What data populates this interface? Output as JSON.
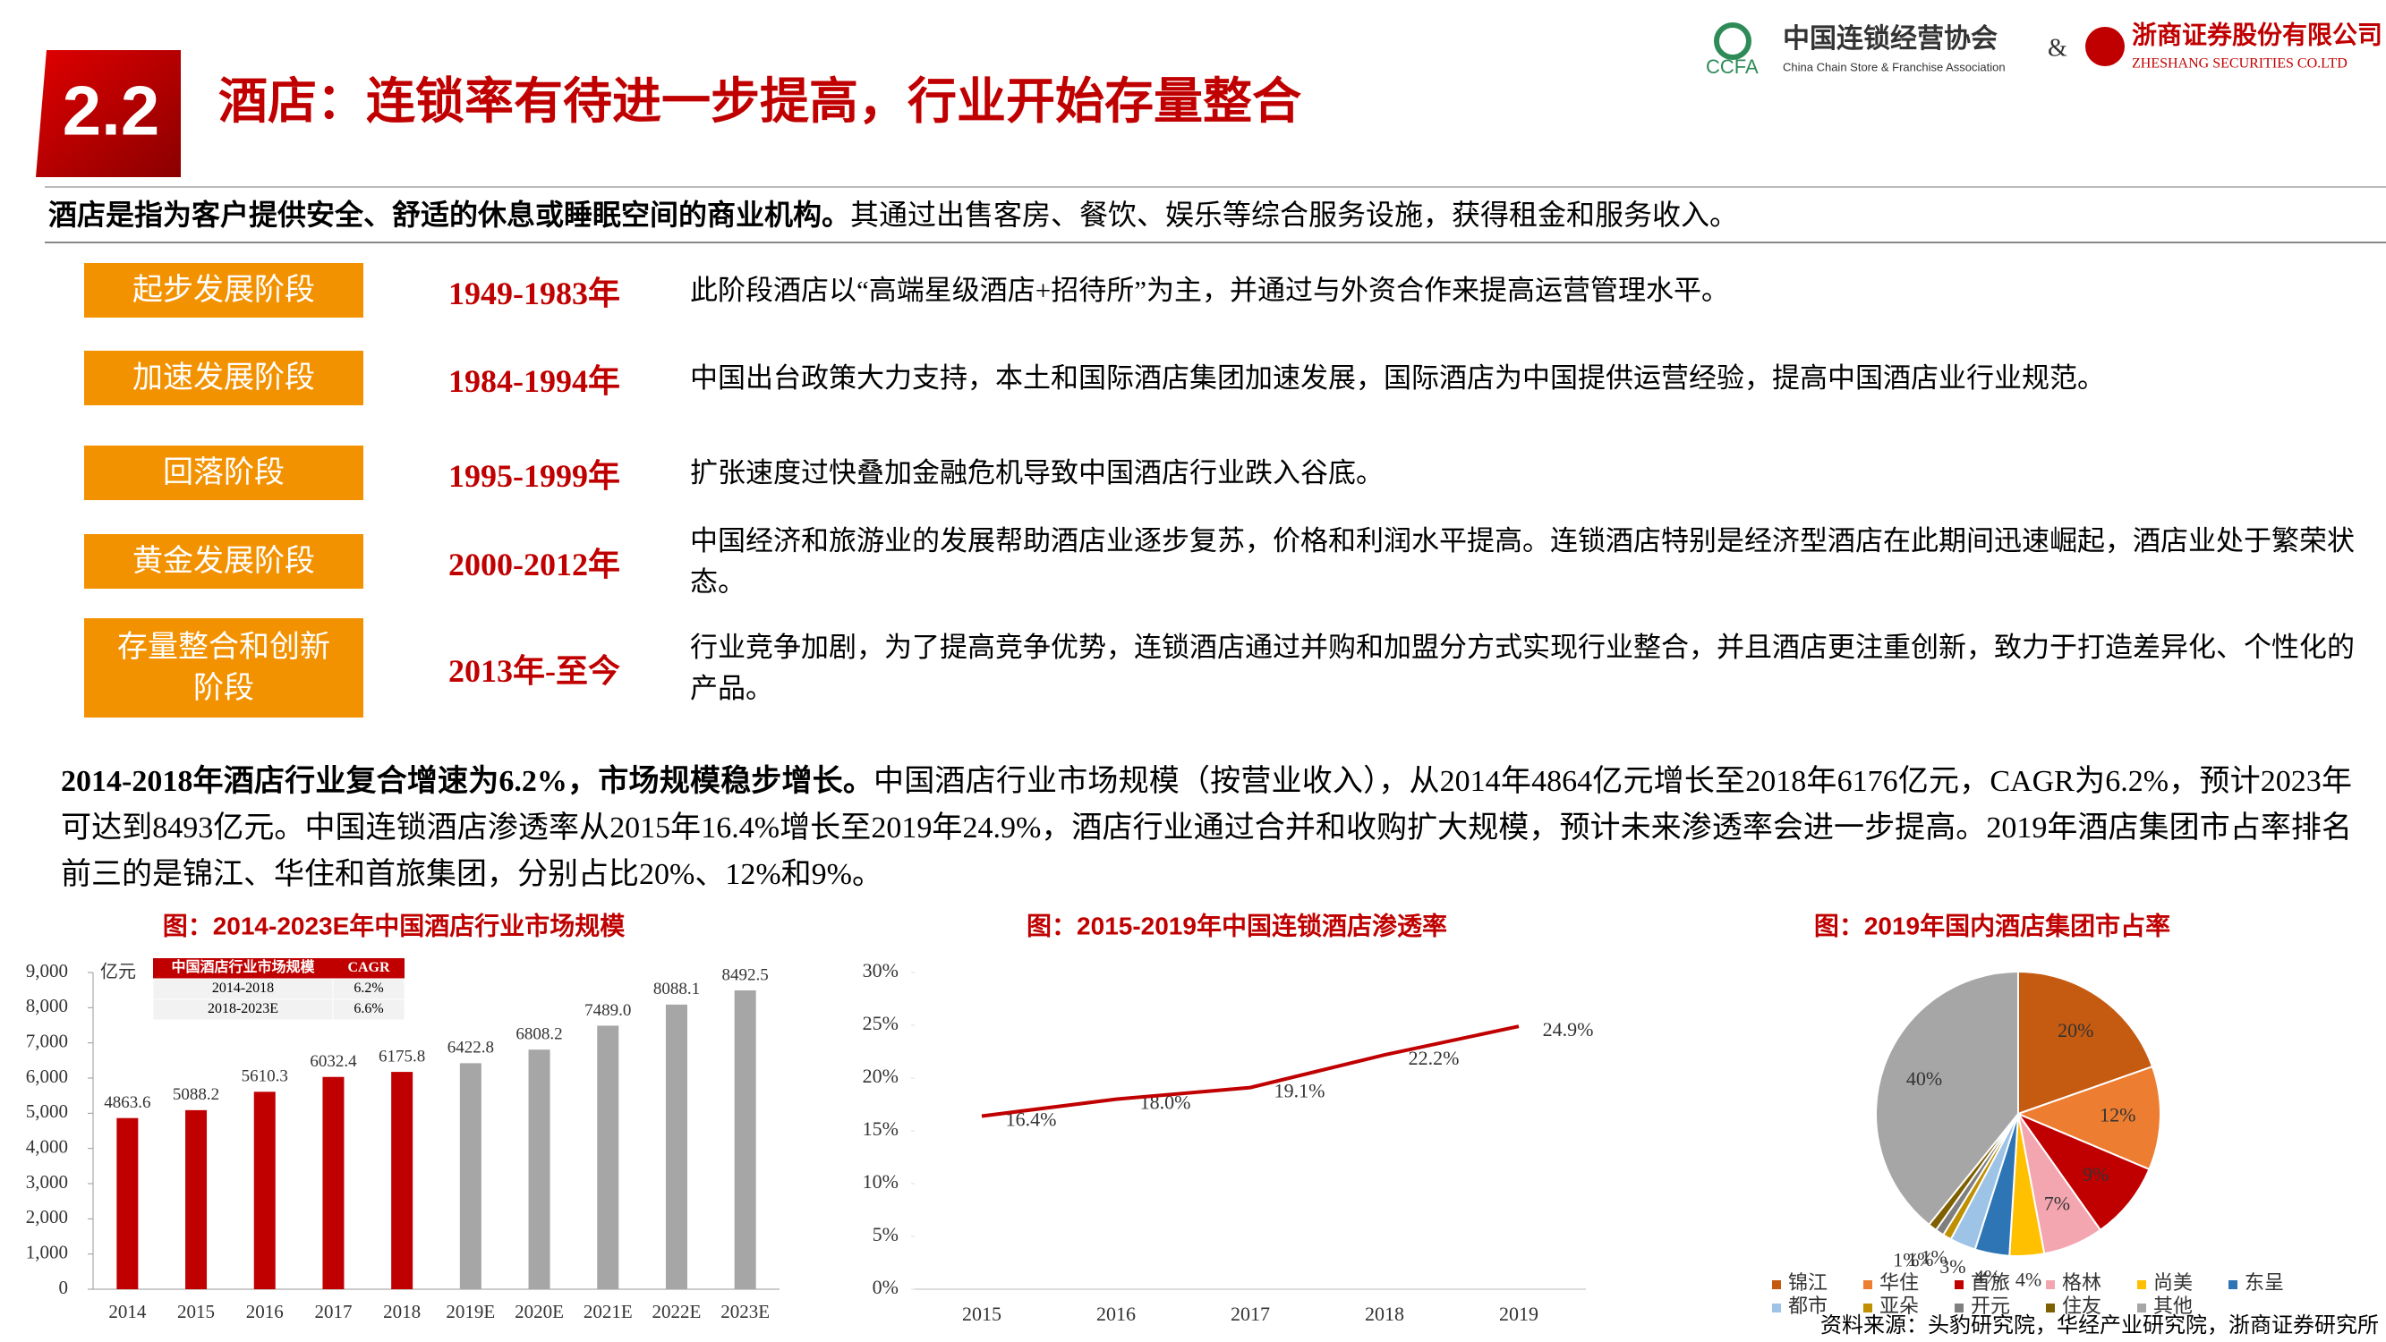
{
  "header": {
    "badge": "2.2",
    "title": "酒店：连锁率有待进一步提高，行业开始存量整合",
    "logo_ccfa": {
      "name": "中国连锁经营协会",
      "abbr": "CCFA",
      "english": "China Chain Store & Franchise Association"
    },
    "ampersand": "&",
    "logo_zheshang": {
      "name": "浙商证券股份有限公司",
      "english": "ZHESHANG SECURITIES CO.LTD"
    }
  },
  "intro": {
    "bold": "酒店是指为客户提供安全、舒适的休息或睡眠空间的商业机构。",
    "text": "其通过出售客房、餐饮、娱乐等综合服务设施，获得租金和服务收入。"
  },
  "stages": [
    {
      "label": "起步发展阶段",
      "period": "1949-1983年",
      "description": "此阶段酒店以“高端星级酒店+招待所”为主，并通过与外资合作来提高运营管理水平。"
    },
    {
      "label": "加速发展阶段",
      "period": "1984-1994年",
      "description": "中国出台政策大力支持，本土和国际酒店集团加速发展，国际酒店为中国提供运营经验，提高中国酒店业行业规范。"
    },
    {
      "label": "回落阶段",
      "period": "1995-1999年",
      "description": "扩张速度过快叠加金融危机导致中国酒店行业跌入谷底。"
    },
    {
      "label": "黄金发展阶段",
      "period": "2000-2012年",
      "description": "中国经济和旅游业的发展帮助酒店业逐步复苏，价格和利润水平提高。连锁酒店特别是经济型酒店在此期间迅速崛起，酒店业处于繁荣状态。"
    },
    {
      "label": "存量整合和创新阶段",
      "period": "2013年-至今",
      "description": "行业竞争加剧，为了提高竞争优势，连锁酒店通过并购和加盟分方式实现行业整合，并且酒店更注重创新，致力于打造差异化、个性化的产品。"
    }
  ],
  "summary": {
    "bold": "2014-2018年酒店行业复合增速为6.2%，市场规模稳步增长。",
    "text": "中国酒店行业市场规模（按营业收入），从2014年4864亿元增长至2018年6176亿元，CAGR为6.2%，预计2023年可达到8493亿元。中国连锁酒店渗透率从2015年16.4%增长至2019年24.9%，酒店行业通过合并和收购扩大规模，预计未来渗透率会进一步提高。2019年酒店集团市占率排名前三的是锦江、华住和首旅集团，分别占比20%、12%和9%。"
  },
  "chart_data": [
    {
      "type": "bar",
      "title": "图：2014-2023E年中国酒店行业市场规模",
      "unit": "亿元",
      "categories": [
        "2014",
        "2015",
        "2016",
        "2017",
        "2018",
        "2019E",
        "2020E",
        "2021E",
        "2022E",
        "2023E"
      ],
      "values": [
        4863.6,
        5088.2,
        5610.3,
        6032.4,
        6175.8,
        6422.8,
        6808.2,
        7489.0,
        8088.1,
        8492.5
      ],
      "value_labels": [
        "4863.6",
        "5088.2",
        "5610.3",
        "6032.4",
        "6175.8",
        "6422.8",
        "6808.2",
        "7489.0",
        "8088.1",
        "8492.5"
      ],
      "colors": [
        "#c00000",
        "#c00000",
        "#c00000",
        "#c00000",
        "#c00000",
        "#a6a6a6",
        "#a6a6a6",
        "#a6a6a6",
        "#a6a6a6",
        "#a6a6a6"
      ],
      "ylim": [
        0,
        9000
      ],
      "yticks": [
        0,
        {
          "value": 1000,
          "label": "1,000"
        },
        {
          "value": 2000,
          "label": "2,000"
        },
        {
          "value": 3000,
          "label": "3,000"
        },
        {
          "value": 4000,
          "label": "4,000"
        },
        {
          "value": 5000,
          "label": "5,000"
        },
        {
          "value": 6000,
          "label": "6,000"
        },
        {
          "value": 7000,
          "label": "7,000"
        },
        {
          "value": 8000,
          "label": "8,000"
        },
        {
          "value": 9000,
          "label": "9,000"
        }
      ],
      "table": {
        "header": [
          "中国酒店行业市场规模",
          "CAGR"
        ],
        "rows": [
          [
            "2014-2018",
            "6.2%"
          ],
          [
            "2018-2023E",
            "6.6%"
          ]
        ]
      }
    },
    {
      "type": "line",
      "title": "图：2015-2019年中国连锁酒店渗透率",
      "categories": [
        "2015",
        "2016",
        "2017",
        "2018",
        "2019"
      ],
      "values": [
        16.4,
        18.0,
        19.1,
        22.2,
        24.9
      ],
      "value_labels": [
        "16.4%",
        "18.0%",
        "19.1%",
        "22.2%",
        "24.9%"
      ],
      "color": "#c00000",
      "ylim": [
        0,
        30
      ],
      "yticks": [
        {
          "value": 0,
          "label": "0%"
        },
        {
          "value": 5,
          "label": "5%"
        },
        {
          "value": 10,
          "label": "10%"
        },
        {
          "value": 15,
          "label": "15%"
        },
        {
          "value": 20,
          "label": "20%"
        },
        {
          "value": 25,
          "label": "25%"
        },
        {
          "value": 30,
          "label": "30%"
        }
      ]
    },
    {
      "type": "pie",
      "title": "图：2019年国内酒店集团市占率",
      "categories": [
        "锦江",
        "华住",
        "首旅",
        "格林",
        "尚美",
        "东呈",
        "都市",
        "亚朵",
        "开元",
        "住友",
        "其他"
      ],
      "values": [
        20,
        12,
        9,
        7,
        4,
        4,
        3,
        1,
        1,
        1,
        40
      ],
      "value_labels": [
        "20%",
        "12%",
        "9%",
        "7%",
        "4%",
        "4%",
        "3%",
        "1%",
        "1%",
        "1%",
        "40%"
      ],
      "colors": [
        "#c55a11",
        "#ed7d31",
        "#c00000",
        "#f4a6b0",
        "#ffc000",
        "#2e75b6",
        "#9dc3e6",
        "#bf9000",
        "#7f7f7f",
        "#7f6000",
        "#a6a6a6"
      ]
    }
  ],
  "source": "资料来源：头豹研究院，华经产业研究院，浙商证券研究所"
}
